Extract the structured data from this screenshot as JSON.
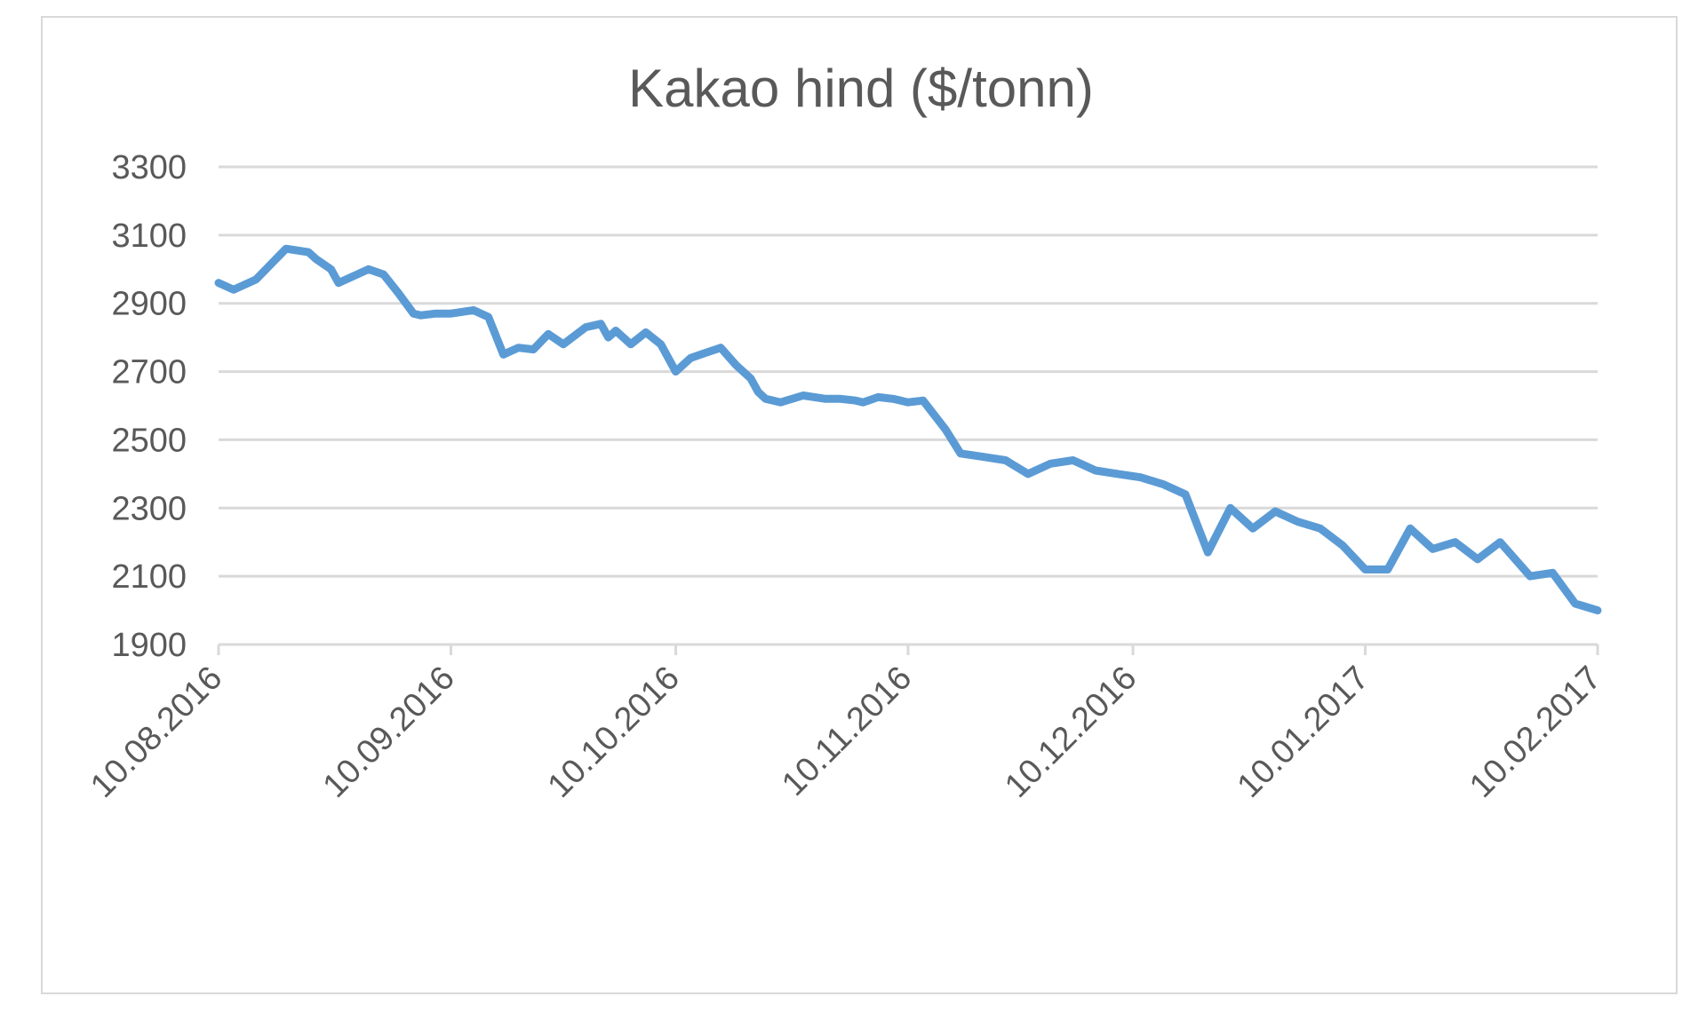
{
  "chart_data": {
    "type": "line",
    "title": "Kakao hind ($/tonn)",
    "xlabel": "",
    "ylabel": "",
    "ylim": [
      1900,
      3300
    ],
    "y_ticks": [
      "1900",
      "2100",
      "2300",
      "2500",
      "2700",
      "2900",
      "3100",
      "3300"
    ],
    "x_ticks": [
      "10.08.2016",
      "10.09.2016",
      "10.10.2016",
      "10.11.2016",
      "10.12.2016",
      "10.01.2017",
      "10.02.2017"
    ],
    "xlim": [
      "2016-08-10",
      "2017-02-10"
    ],
    "grid": "horizontal",
    "legend": "none",
    "line_color": "#5B9BD5",
    "grid_color": "#d9d9d9",
    "text_color": "#595959",
    "series": [
      {
        "x": [
          "2016-08-10",
          "2016-08-12",
          "2016-08-15",
          "2016-08-17",
          "2016-08-19",
          "2016-08-22",
          "2016-08-23",
          "2016-08-25",
          "2016-08-26",
          "2016-08-30",
          "2016-09-01",
          "2016-09-03",
          "2016-09-05",
          "2016-09-06",
          "2016-09-08",
          "2016-09-10",
          "2016-09-13",
          "2016-09-15",
          "2016-09-17",
          "2016-09-19",
          "2016-09-21",
          "2016-09-23",
          "2016-09-25",
          "2016-09-28",
          "2016-09-30",
          "2016-10-01",
          "2016-10-02",
          "2016-10-04",
          "2016-10-06",
          "2016-10-08",
          "2016-10-10",
          "2016-10-12",
          "2016-10-14",
          "2016-10-16",
          "2016-10-18",
          "2016-10-20",
          "2016-10-21",
          "2016-10-22",
          "2016-10-24",
          "2016-10-27",
          "2016-10-30",
          "2016-11-01",
          "2016-11-03",
          "2016-11-04",
          "2016-11-06",
          "2016-11-08",
          "2016-11-10",
          "2016-11-12",
          "2016-11-15",
          "2016-11-17",
          "2016-11-20",
          "2016-11-23",
          "2016-11-26",
          "2016-11-29",
          "2016-12-02",
          "2016-12-05",
          "2016-12-08",
          "2016-12-11",
          "2016-12-14",
          "2016-12-17",
          "2016-12-20",
          "2016-12-23",
          "2016-12-26",
          "2016-12-29",
          "2017-01-01",
          "2017-01-04",
          "2017-01-07",
          "2017-01-10",
          "2017-01-13",
          "2017-01-16",
          "2017-01-19",
          "2017-01-22",
          "2017-01-25",
          "2017-01-28",
          "2017-02-01",
          "2017-02-04",
          "2017-02-07",
          "2017-02-10"
        ],
        "y": [
          2960,
          2940,
          2970,
          3015,
          3060,
          3050,
          3030,
          3000,
          2960,
          3000,
          2985,
          2930,
          2870,
          2865,
          2870,
          2870,
          2880,
          2860,
          2750,
          2770,
          2765,
          2810,
          2780,
          2830,
          2840,
          2800,
          2820,
          2780,
          2815,
          2780,
          2700,
          2740,
          2755,
          2770,
          2720,
          2680,
          2640,
          2620,
          2610,
          2630,
          2620,
          2620,
          2615,
          2610,
          2625,
          2620,
          2610,
          2615,
          2530,
          2460,
          2450,
          2440,
          2400,
          2430,
          2440,
          2410,
          2400,
          2390,
          2370,
          2340,
          2170,
          2300,
          2240,
          2290,
          2260,
          2240,
          2190,
          2120,
          2120,
          2240,
          2180,
          2200,
          2150,
          2200,
          2100,
          2110,
          2020,
          2000
        ]
      }
    ]
  }
}
